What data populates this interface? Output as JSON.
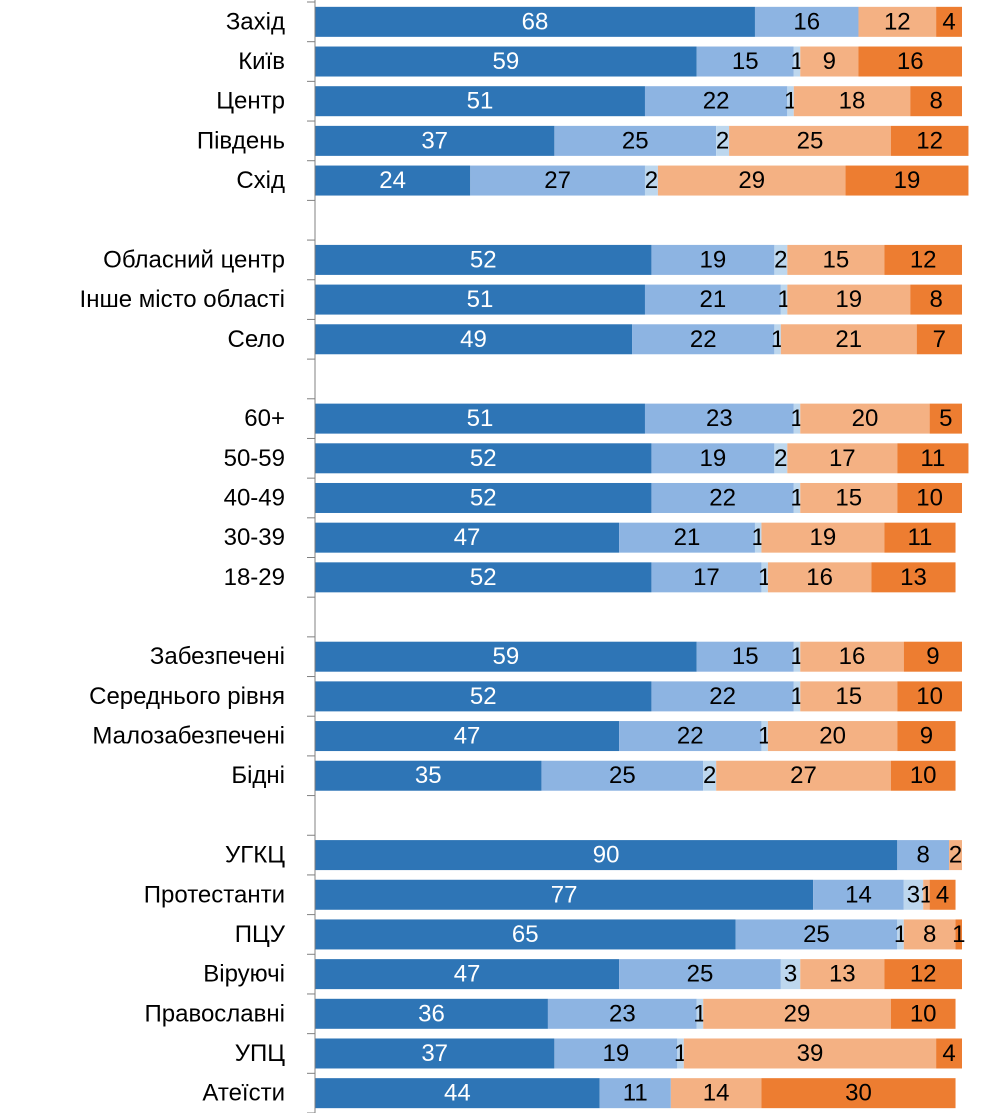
{
  "chart_data": {
    "type": "stacked-bar-horizontal",
    "categories": [
      "Захід",
      "Київ",
      "Центр",
      "Південь",
      "Схід",
      null,
      "Обласний центр",
      "Інше місто області",
      "Село",
      null,
      "60+",
      "50-59",
      "40-49",
      "30-39",
      "18-29",
      null,
      "Забезпечені",
      "Середнього рівня",
      "Малозабезпечені",
      "Бідні",
      null,
      "УГКЦ",
      "Протестанти",
      "ПЦУ",
      "Віруючі",
      "Православні",
      "УПЦ",
      "Атеїсти"
    ],
    "xlim": [
      0,
      100
    ],
    "series": [
      {
        "color": "#2e75b6",
        "label_color": "#ffffff",
        "values": [
          68,
          59,
          51,
          37,
          24,
          null,
          52,
          51,
          49,
          null,
          51,
          52,
          52,
          47,
          52,
          null,
          59,
          52,
          47,
          35,
          null,
          90,
          77,
          65,
          47,
          36,
          37,
          44
        ]
      },
      {
        "color": "#8db4e2",
        "label_color": "#000000",
        "values": [
          16,
          15,
          22,
          25,
          27,
          null,
          19,
          21,
          22,
          null,
          23,
          19,
          22,
          21,
          17,
          null,
          15,
          22,
          22,
          25,
          null,
          8,
          14,
          25,
          25,
          23,
          19,
          11
        ]
      },
      {
        "color": "#bdd7ee",
        "label_color": "#000000",
        "values": [
          null,
          1,
          1,
          2,
          2,
          null,
          2,
          1,
          1,
          null,
          1,
          2,
          1,
          1,
          1,
          null,
          1,
          1,
          1,
          2,
          null,
          null,
          3,
          1,
          3,
          1,
          1,
          null
        ]
      },
      {
        "color": "#f4b183",
        "label_color": "#000000",
        "values": [
          12,
          9,
          18,
          25,
          29,
          null,
          15,
          19,
          21,
          null,
          20,
          17,
          15,
          19,
          16,
          null,
          16,
          15,
          20,
          27,
          null,
          2,
          1,
          8,
          13,
          29,
          39,
          14
        ]
      },
      {
        "color": "#ed7d31",
        "label_color": "#000000",
        "values": [
          4,
          16,
          8,
          12,
          19,
          null,
          12,
          8,
          7,
          null,
          5,
          11,
          10,
          11,
          13,
          null,
          9,
          10,
          9,
          10,
          null,
          null,
          4,
          1,
          12,
          10,
          4,
          30
        ]
      }
    ]
  }
}
